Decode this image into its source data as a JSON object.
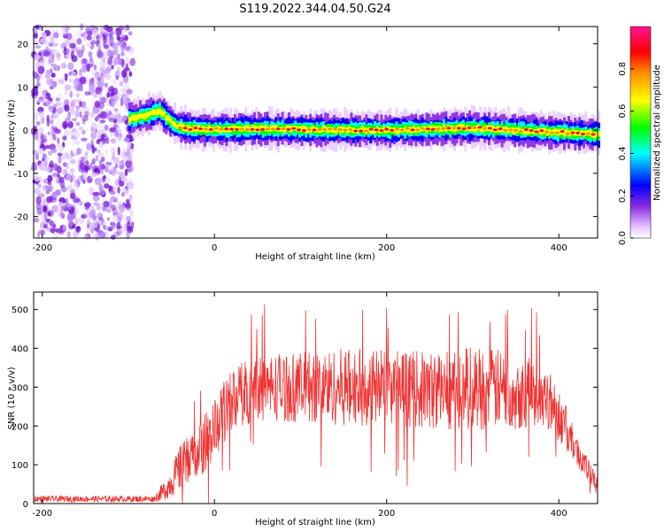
{
  "figure": {
    "title": "S119.2022.344.04.50.G24"
  },
  "chart_data": [
    {
      "type": "heatmap",
      "name": "spectrogram",
      "xlabel": "Height of straight line (km)",
      "ylabel": "Frequency (Hz)",
      "xlim": [
        -210,
        445
      ],
      "ylim": [
        -25,
        24
      ],
      "x_ticks": [
        -200,
        0,
        200,
        400
      ],
      "y_ticks": [
        -20,
        -10,
        0,
        10,
        20
      ],
      "colorbar": {
        "label": "Normalized spectral amplitude",
        "range": [
          0.0,
          1.0
        ],
        "ticks": [
          "0.0",
          "0.2",
          "0.4",
          "0.6",
          "0.8"
        ],
        "colormap": [
          "#ffffff",
          "#e6c8ff",
          "#8a2be2",
          "#0000ff",
          "#00ffff",
          "#00ff00",
          "#ffff00",
          "#ff8c00",
          "#ff0000",
          "#ff1493"
        ]
      },
      "noise_region_x": [
        -210,
        -95
      ],
      "signal_trace": [
        {
          "x": -100,
          "f": 2.5
        },
        {
          "x": -80,
          "f": 3.5
        },
        {
          "x": -65,
          "f": 4.5
        },
        {
          "x": -55,
          "f": 2.5
        },
        {
          "x": -45,
          "f": 1.0
        },
        {
          "x": -30,
          "f": 0.3
        },
        {
          "x": 0,
          "f": 0.2
        },
        {
          "x": 50,
          "f": 0.3
        },
        {
          "x": 100,
          "f": 0.2
        },
        {
          "x": 150,
          "f": 0.0
        },
        {
          "x": 200,
          "f": 0.0
        },
        {
          "x": 250,
          "f": 0.3
        },
        {
          "x": 300,
          "f": 0.5
        },
        {
          "x": 350,
          "f": 0.0
        },
        {
          "x": 400,
          "f": -0.5
        },
        {
          "x": 445,
          "f": -1.0
        }
      ]
    },
    {
      "type": "line",
      "name": "snr",
      "xlabel": "Height of straight line (km)",
      "ylabel": "SNR (10 * v/v)",
      "xlim": [
        -210,
        445
      ],
      "ylim": [
        0,
        545
      ],
      "x_ticks": [
        -200,
        0,
        200,
        400
      ],
      "y_ticks": [
        0,
        100,
        200,
        300,
        400,
        500
      ],
      "color": "#f03232",
      "envelope": [
        {
          "x": -210,
          "mean": 12,
          "spread": 8
        },
        {
          "x": -70,
          "mean": 12,
          "spread": 8
        },
        {
          "x": -55,
          "mean": 40,
          "spread": 30
        },
        {
          "x": -40,
          "mean": 90,
          "spread": 60
        },
        {
          "x": -20,
          "mean": 130,
          "spread": 70
        },
        {
          "x": 0,
          "mean": 190,
          "spread": 80
        },
        {
          "x": 20,
          "mean": 270,
          "spread": 80
        },
        {
          "x": 50,
          "mean": 300,
          "spread": 90
        },
        {
          "x": 100,
          "mean": 300,
          "spread": 90
        },
        {
          "x": 150,
          "mean": 300,
          "spread": 100
        },
        {
          "x": 200,
          "mean": 300,
          "spread": 100
        },
        {
          "x": 250,
          "mean": 290,
          "spread": 100
        },
        {
          "x": 300,
          "mean": 300,
          "spread": 110
        },
        {
          "x": 350,
          "mean": 290,
          "spread": 100
        },
        {
          "x": 385,
          "mean": 280,
          "spread": 80
        },
        {
          "x": 400,
          "mean": 230,
          "spread": 70
        },
        {
          "x": 420,
          "mean": 140,
          "spread": 40
        },
        {
          "x": 445,
          "mean": 40,
          "spread": 25
        }
      ],
      "peak_max": 535
    }
  ]
}
